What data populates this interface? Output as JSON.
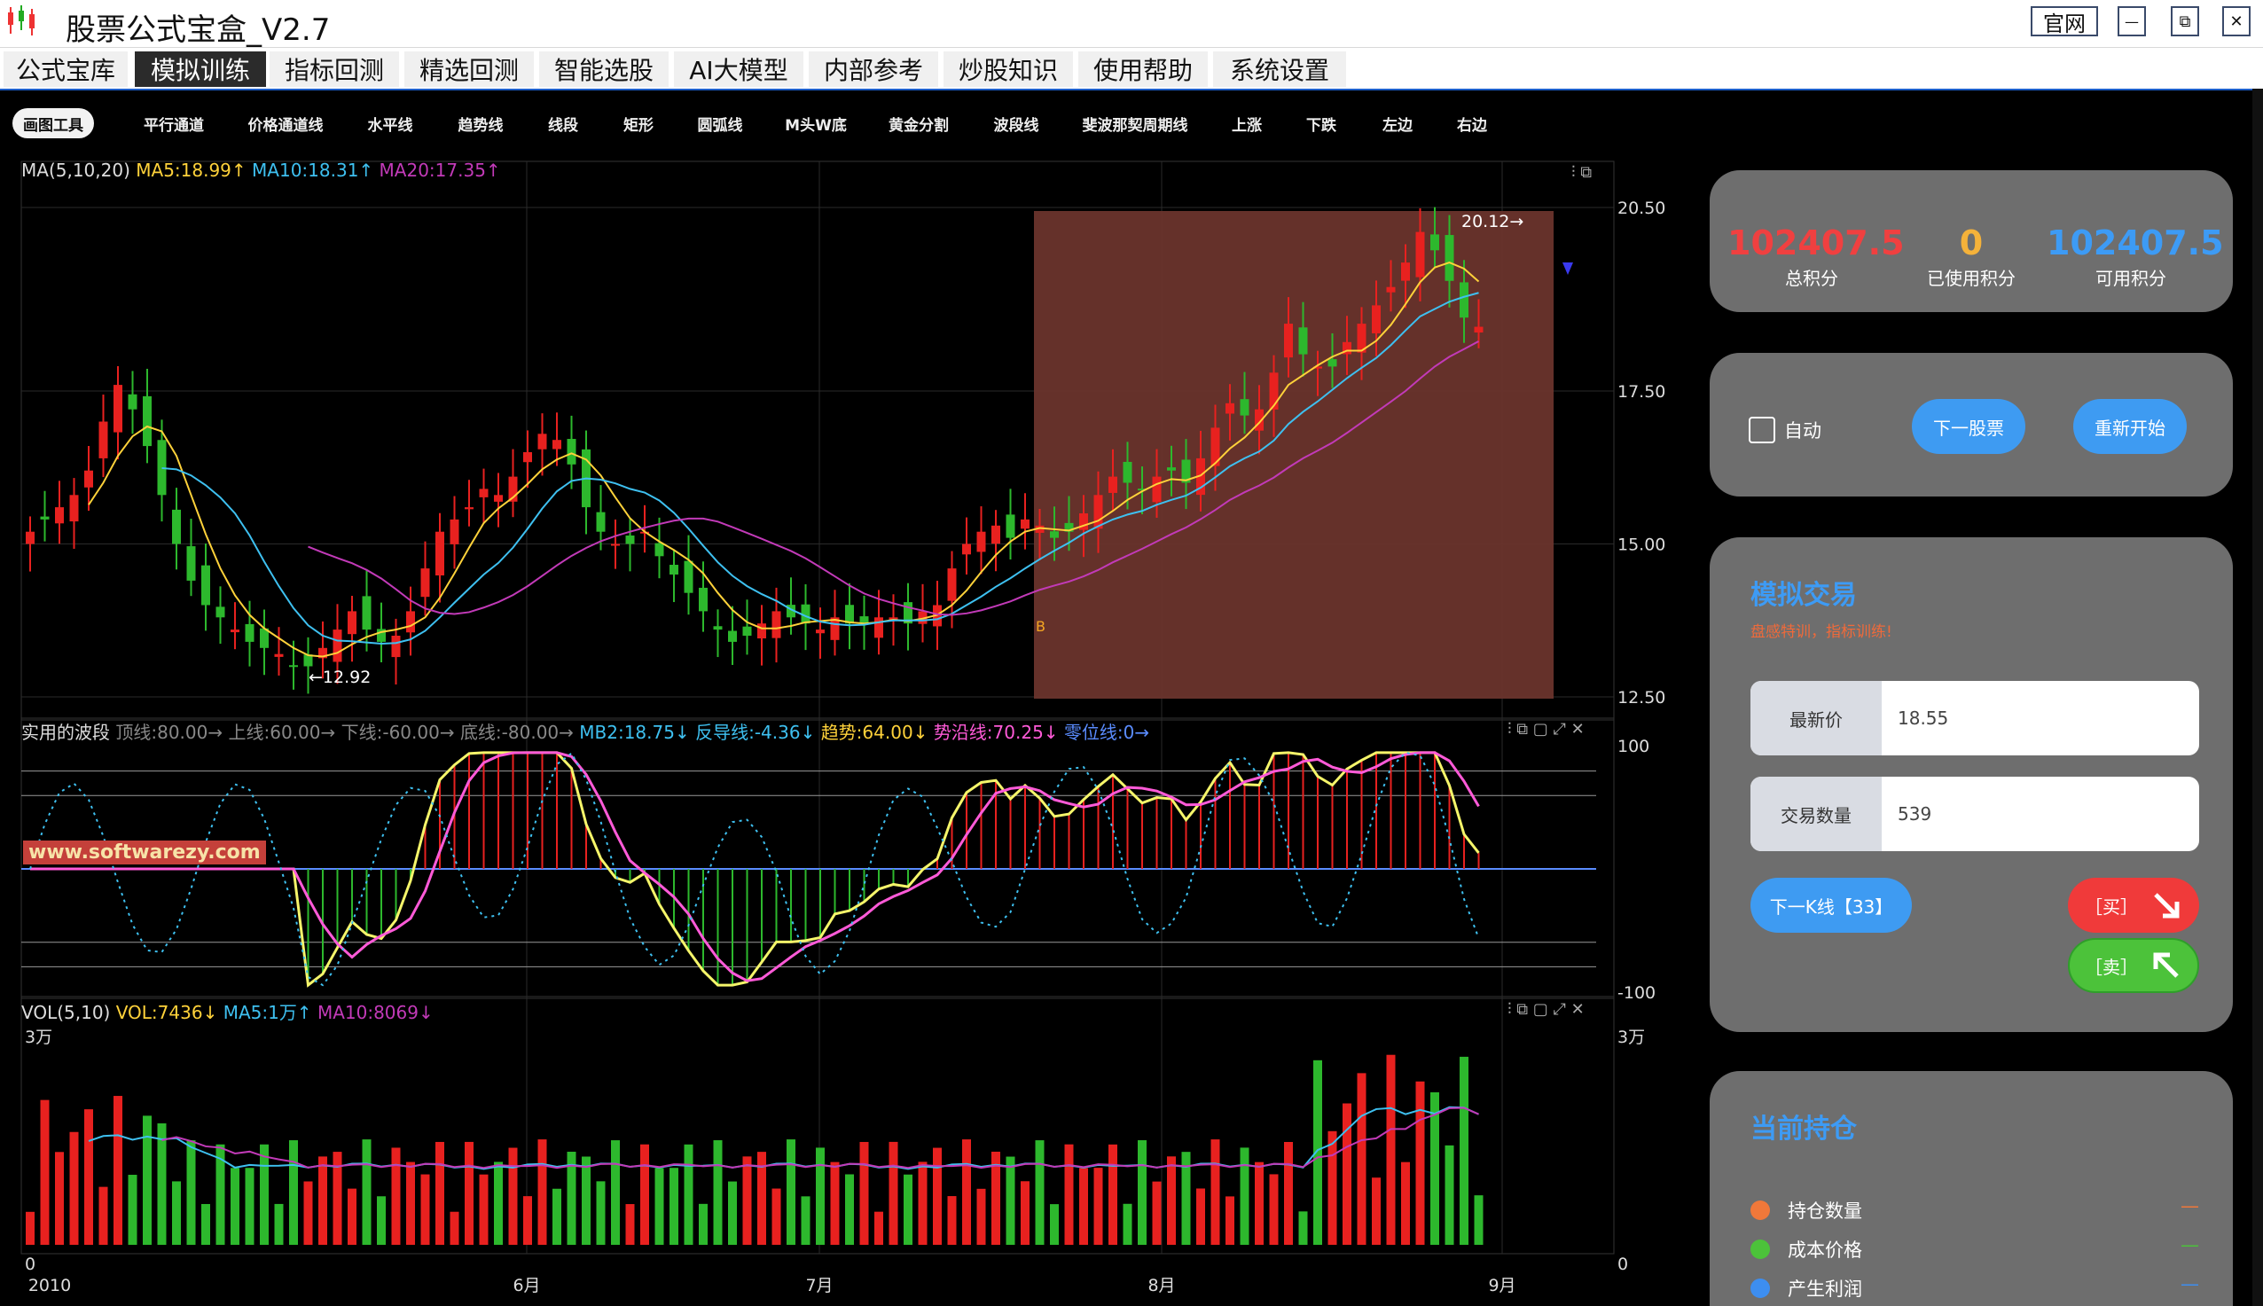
{
  "window": {
    "title": "股票公式宝盒_V2.7",
    "official_btn": "官网",
    "min_btn": "—",
    "max_btn": "⧉",
    "close_btn": "✕"
  },
  "menu": [
    "公式宝库",
    "模拟训练",
    "指标回测",
    "精选回测",
    "智能选股",
    "AI大模型",
    "内部参考",
    "炒股知识",
    "使用帮助",
    "系统设置"
  ],
  "menu_active_index": 1,
  "toolbar": [
    "画图工具",
    "平行通道",
    "价格通道线",
    "水平线",
    "趋势线",
    "线段",
    "矩形",
    "圆弧线",
    "M头W底",
    "黄金分割",
    "波段线",
    "斐波那契周期线",
    "上涨",
    "下跌",
    "左边",
    "右边"
  ],
  "main_chart": {
    "legend_name": "MA(5,10,20)",
    "legend_ma5": "MA5:18.99↑",
    "legend_ma10": "MA10:18.31↑",
    "legend_ma20": "MA20:17.35↑",
    "y_ticks": [
      "20.50",
      "17.50",
      "15.00",
      "12.50"
    ],
    "high_label": "20.12→",
    "low_label": "←12.92",
    "buy_marker": "B",
    "watermark": "www.softwarezy.com"
  },
  "wave_chart": {
    "legend_name": "实用的波段",
    "legend_top": "顶线:80.00→",
    "legend_upper": "上线:60.00→",
    "legend_lower": "下线:-60.00→",
    "legend_bottom": "底线:-80.00→",
    "legend_mb2": "MB2:18.75↓",
    "legend_fandao": "反导线:-4.36↓",
    "legend_trend": "趋势:64.00↓",
    "legend_shiyan": "势沿线:70.25↓",
    "legend_zero": "零位线:0→",
    "y_ticks": [
      "100",
      "-100"
    ]
  },
  "vol_chart": {
    "legend_name": "VOL(5,10)",
    "legend_vol": "VOL:7436↓",
    "legend_ma5": "MA5:1万↑",
    "legend_ma10": "MA10:8069↓",
    "y_top_left": "3万",
    "y_top_right": "3万",
    "y_zero_left": "0",
    "y_zero_right": "0"
  },
  "x_axis": [
    "2010",
    "6月",
    "7月",
    "8月",
    "9月"
  ],
  "account": {
    "total_val": "102407.5",
    "total_lbl": "总积分",
    "used_val": "0",
    "used_lbl": "已使用积分",
    "avail_val": "102407.5",
    "avail_lbl": "可用积分"
  },
  "controls": {
    "auto_lbl": "自动",
    "next_stock": "下一股票",
    "restart": "重新开始"
  },
  "trade": {
    "title": "模拟交易",
    "subtitle": "盘感特训，指标训练!",
    "price_lbl": "最新价",
    "price_val": "18.55",
    "qty_lbl": "交易数量",
    "qty_val": "539",
    "next_k": "下一K线【33】",
    "buy": "［买］",
    "sell": "［卖］"
  },
  "holdings": {
    "title": "当前持仓",
    "rows": [
      {
        "label": "持仓数量",
        "value": "—",
        "color": "#f0783a"
      },
      {
        "label": "成本价格",
        "value": "—",
        "color": "#4cc23a"
      },
      {
        "label": "产生利润",
        "value": "—",
        "color": "#3d8ef0"
      }
    ]
  },
  "colors": {
    "up": "#e8211f",
    "down": "#2db82d",
    "ma5": "#ffd23a",
    "ma10": "#3ec0f0",
    "ma20": "#c23ab8",
    "accent": "#3d9bf5",
    "buy": "#f03a3a",
    "sell": "#4cc23a"
  }
}
